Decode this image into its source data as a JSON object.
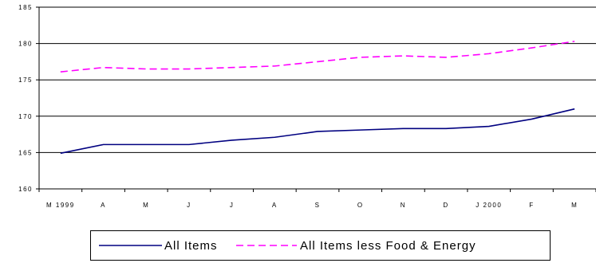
{
  "chart_data": {
    "type": "line",
    "title": "",
    "xlabel": "",
    "ylabel": "",
    "categories": [
      "M 1999",
      "A",
      "M",
      "J",
      "J",
      "A",
      "S",
      "O",
      "N",
      "D",
      "J 2000",
      "F",
      "M"
    ],
    "ylim": [
      160,
      185
    ],
    "yticks": [
      160,
      165,
      170,
      175,
      180,
      185
    ],
    "grid": true,
    "legend_position": "bottom",
    "series": [
      {
        "name": "All Items",
        "color": "#000080",
        "style": "solid",
        "values": [
          164.9,
          166.1,
          166.1,
          166.1,
          166.7,
          167.1,
          167.9,
          168.1,
          168.3,
          168.3,
          168.6,
          169.6,
          171.0
        ]
      },
      {
        "name": "All Items less Food & Energy",
        "color": "#FF00FF",
        "style": "dashed",
        "values": [
          176.1,
          176.7,
          176.5,
          176.5,
          176.7,
          176.9,
          177.5,
          178.1,
          178.3,
          178.1,
          178.6,
          179.4,
          180.3
        ]
      }
    ]
  }
}
